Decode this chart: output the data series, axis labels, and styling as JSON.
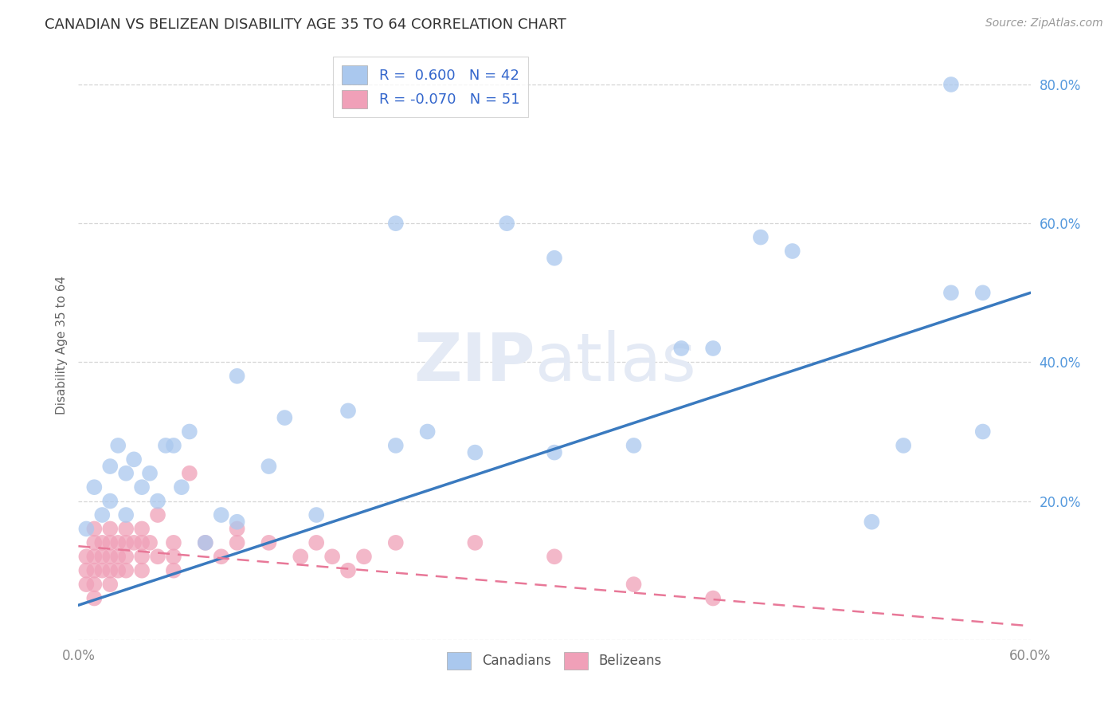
{
  "title": "CANADIAN VS BELIZEAN DISABILITY AGE 35 TO 64 CORRELATION CHART",
  "source_text": "Source: ZipAtlas.com",
  "ylabel": "Disability Age 35 to 64",
  "xlim": [
    0.0,
    0.6
  ],
  "ylim": [
    0.0,
    0.85
  ],
  "canadian_R": 0.6,
  "canadian_N": 42,
  "belizean_R": -0.07,
  "belizean_N": 51,
  "canadian_color": "#aac8ee",
  "belizean_color": "#f0a0b8",
  "canadian_line_color": "#3a7abf",
  "belizean_line_color": "#e87898",
  "background_color": "#ffffff",
  "grid_color": "#cccccc",
  "ytick_color": "#5599dd",
  "xtick_color": "#888888",
  "watermark_color": "#e4eaf5",
  "canadian_line_y0": 0.05,
  "canadian_line_y1": 0.5,
  "belizean_line_y0": 0.135,
  "belizean_line_y1": 0.02,
  "canadian_scatter_x": [
    0.005,
    0.01,
    0.015,
    0.02,
    0.02,
    0.025,
    0.03,
    0.03,
    0.035,
    0.04,
    0.045,
    0.05,
    0.055,
    0.06,
    0.065,
    0.07,
    0.08,
    0.09,
    0.1,
    0.12,
    0.13,
    0.15,
    0.17,
    0.2,
    0.22,
    0.25,
    0.3,
    0.3,
    0.35,
    0.38,
    0.4,
    0.43,
    0.45,
    0.5,
    0.52,
    0.55,
    0.57,
    0.2,
    0.1,
    0.27,
    0.55,
    0.57
  ],
  "canadian_scatter_y": [
    0.16,
    0.22,
    0.18,
    0.2,
    0.25,
    0.28,
    0.18,
    0.24,
    0.26,
    0.22,
    0.24,
    0.2,
    0.28,
    0.28,
    0.22,
    0.3,
    0.14,
    0.18,
    0.17,
    0.25,
    0.32,
    0.18,
    0.33,
    0.28,
    0.3,
    0.27,
    0.27,
    0.55,
    0.28,
    0.42,
    0.42,
    0.58,
    0.56,
    0.17,
    0.28,
    0.5,
    0.3,
    0.6,
    0.38,
    0.6,
    0.8,
    0.5
  ],
  "belizean_scatter_x": [
    0.005,
    0.005,
    0.005,
    0.01,
    0.01,
    0.01,
    0.01,
    0.01,
    0.01,
    0.015,
    0.015,
    0.015,
    0.02,
    0.02,
    0.02,
    0.02,
    0.02,
    0.025,
    0.025,
    0.025,
    0.03,
    0.03,
    0.03,
    0.03,
    0.035,
    0.04,
    0.04,
    0.04,
    0.04,
    0.045,
    0.05,
    0.05,
    0.06,
    0.06,
    0.06,
    0.07,
    0.08,
    0.09,
    0.1,
    0.1,
    0.12,
    0.14,
    0.15,
    0.16,
    0.17,
    0.18,
    0.2,
    0.25,
    0.3,
    0.35,
    0.4
  ],
  "belizean_scatter_y": [
    0.12,
    0.1,
    0.08,
    0.14,
    0.12,
    0.1,
    0.08,
    0.06,
    0.16,
    0.14,
    0.12,
    0.1,
    0.16,
    0.14,
    0.12,
    0.1,
    0.08,
    0.14,
    0.12,
    0.1,
    0.16,
    0.14,
    0.12,
    0.1,
    0.14,
    0.16,
    0.14,
    0.12,
    0.1,
    0.14,
    0.18,
    0.12,
    0.14,
    0.12,
    0.1,
    0.24,
    0.14,
    0.12,
    0.14,
    0.16,
    0.14,
    0.12,
    0.14,
    0.12,
    0.1,
    0.12,
    0.14,
    0.14,
    0.12,
    0.08,
    0.06
  ]
}
